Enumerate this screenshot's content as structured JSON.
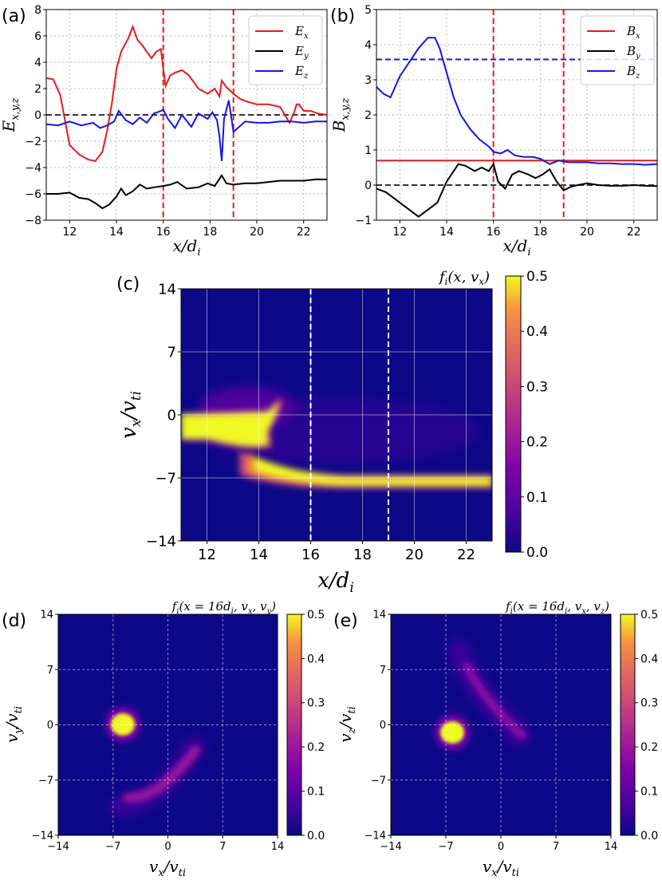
{
  "panels": {
    "a": "(a)",
    "b": "(b)",
    "c": "(c)",
    "d": "(d)",
    "e": "(e)"
  },
  "colorbars": {
    "c": {
      "title": "f_i(x, v_x)",
      "ticks": [
        "0.5",
        "0.4",
        "0.3",
        "0.2",
        "0.1",
        "0.0"
      ]
    },
    "d": {
      "ticks": [
        "0.5",
        "0.4",
        "0.3",
        "0.2",
        "0.1",
        "0.0"
      ]
    },
    "e": {
      "ticks": [
        "0.5",
        "0.4",
        "0.3",
        "0.2",
        "0.1",
        "0.0"
      ]
    }
  },
  "colors": {
    "red": "#e8191c",
    "black": "#000000",
    "blue": "#1515e6",
    "dashed_ref": "#444444",
    "plasma_low": "#0d0887",
    "plasma_high": "#f0f921"
  },
  "chart_data": [
    {
      "id": "a",
      "type": "line",
      "xlabel": "x/d_i",
      "ylabel": "E_{x,y,z}",
      "xlim": [
        11,
        23
      ],
      "ylim": [
        -8,
        8
      ],
      "xticks": [
        "12",
        "14",
        "16",
        "18",
        "20",
        "22"
      ],
      "yticks": [
        "8",
        "6",
        "4",
        "2",
        "0",
        "−2",
        "−4",
        "−6",
        "−8"
      ],
      "legend_placement": "top-right",
      "grid": true,
      "vlines": [
        16,
        19
      ],
      "hline": 0,
      "series": [
        {
          "name": "E_x",
          "color": "#e8191c",
          "x": [
            11,
            11.3,
            11.6,
            12,
            12.4,
            12.8,
            13.1,
            13.4,
            13.6,
            13.8,
            14,
            14.2,
            14.5,
            14.7,
            14.9,
            15.1,
            15.3,
            15.5,
            15.7,
            15.9,
            16,
            16.1,
            16.3,
            16.5,
            16.8,
            17.1,
            17.5,
            17.9,
            18.2,
            18.4,
            18.5,
            18.7,
            19,
            19.3,
            19.6,
            20,
            20.5,
            21,
            21.4,
            21.6,
            21.7,
            21.8,
            22,
            22.3,
            22.6,
            23
          ],
          "y": [
            2.8,
            2.7,
            1.5,
            -2.3,
            -3.0,
            -3.4,
            -3.5,
            -2.8,
            -1.2,
            0.8,
            3.5,
            4.8,
            5.8,
            6.7,
            5.7,
            5.3,
            4.8,
            4.3,
            4.8,
            5.0,
            3.5,
            2.2,
            3.0,
            3.2,
            3.4,
            3.0,
            2.0,
            1.6,
            2.0,
            1.4,
            2.6,
            2.1,
            1.6,
            1.2,
            1.0,
            0.8,
            0.8,
            0.6,
            -0.6,
            0.2,
            0.8,
            0.8,
            0.3,
            0.3,
            0.1,
            0.0
          ]
        },
        {
          "name": "E_y",
          "color": "#000000",
          "x": [
            11,
            11.5,
            12,
            12.4,
            12.8,
            13.1,
            13.4,
            13.7,
            14,
            14.2,
            14.4,
            14.7,
            15,
            15.3,
            15.6,
            16,
            16.3,
            16.6,
            17,
            17.5,
            17.9,
            18.2,
            18.5,
            18.7,
            19,
            19.5,
            20,
            20.5,
            21,
            21.5,
            22,
            22.5,
            23
          ],
          "y": [
            -6.0,
            -6.0,
            -5.9,
            -6.3,
            -6.4,
            -6.7,
            -7.1,
            -6.8,
            -6.2,
            -5.6,
            -6.1,
            -5.8,
            -5.3,
            -5.6,
            -5.5,
            -5.4,
            -5.3,
            -5.1,
            -5.6,
            -5.5,
            -5.2,
            -5.4,
            -4.6,
            -5.2,
            -5.3,
            -5.2,
            -5.2,
            -5.1,
            -5.0,
            -5.0,
            -5.0,
            -4.9,
            -4.9
          ]
        },
        {
          "name": "E_z",
          "color": "#1515e6",
          "x": [
            11,
            11.5,
            12,
            12.5,
            13,
            13.3,
            13.6,
            13.9,
            14.1,
            14.4,
            14.7,
            15,
            15.3,
            15.6,
            15.9,
            16,
            16.2,
            16.5,
            16.8,
            17.2,
            17.5,
            17.9,
            18.1,
            18.3,
            18.4,
            18.5,
            18.6,
            18.8,
            19,
            19.5,
            20,
            20.5,
            21,
            21.5,
            22,
            22.5,
            23
          ],
          "y": [
            -0.7,
            -0.8,
            -0.5,
            -0.8,
            -0.6,
            -1.0,
            -0.8,
            -0.5,
            0.3,
            -0.4,
            -0.7,
            -0.2,
            -0.6,
            0.1,
            0.3,
            0.4,
            -0.3,
            -1.0,
            0.0,
            -0.9,
            0.1,
            -0.3,
            0.2,
            -0.4,
            -1.6,
            -3.5,
            -0.3,
            1.1,
            -1.3,
            -0.5,
            -0.6,
            -0.6,
            -0.5,
            -0.5,
            -0.6,
            -0.5,
            -0.5
          ]
        }
      ]
    },
    {
      "id": "b",
      "type": "line",
      "xlabel": "x/d_i",
      "ylabel": "B_{x,y,z}",
      "xlim": [
        11,
        23
      ],
      "ylim": [
        -1,
        5
      ],
      "xticks": [
        "12",
        "14",
        "16",
        "18",
        "20",
        "22"
      ],
      "yticks": [
        "5",
        "4",
        "3",
        "2",
        "1",
        "0",
        "−1"
      ],
      "legend_placement": "top-right",
      "grid": true,
      "vlines": [
        16,
        19
      ],
      "hline": 0,
      "hline_blue": 3.58,
      "series": [
        {
          "name": "B_x",
          "color": "#e8191c",
          "x": [
            11,
            23
          ],
          "y": [
            0.7,
            0.7
          ]
        },
        {
          "name": "B_y",
          "color": "#000000",
          "x": [
            11,
            11.4,
            11.8,
            12.2,
            12.6,
            12.8,
            13.2,
            13.6,
            14,
            14.3,
            14.5,
            14.8,
            15.2,
            15.5,
            15.8,
            16,
            16.2,
            16.5,
            16.8,
            17.1,
            17.5,
            17.8,
            18.1,
            18.4,
            18.7,
            19,
            19.3,
            19.6,
            20,
            20.5,
            21,
            21.5,
            22,
            22.5,
            23
          ],
          "y": [
            -0.1,
            -0.2,
            -0.4,
            -0.6,
            -0.8,
            -0.9,
            -0.7,
            -0.5,
            0.1,
            0.4,
            0.6,
            0.55,
            0.4,
            0.5,
            0.4,
            0.6,
            0.1,
            -0.1,
            0.3,
            0.4,
            0.3,
            0.2,
            0.3,
            0.45,
            0.1,
            -0.15,
            -0.05,
            0.0,
            0.05,
            0.0,
            -0.02,
            -0.02,
            0.0,
            -0.02,
            -0.03
          ]
        },
        {
          "name": "B_z",
          "color": "#1515e6",
          "x": [
            11,
            11.3,
            11.6,
            12,
            12.4,
            12.8,
            13.2,
            13.5,
            13.7,
            14,
            14.3,
            14.6,
            15,
            15.4,
            15.8,
            16,
            16.3,
            16.6,
            16.9,
            17.3,
            17.7,
            18,
            18.4,
            18.8,
            19.2,
            19.6,
            20,
            20.5,
            21,
            21.5,
            22,
            22.5,
            23
          ],
          "y": [
            2.8,
            2.6,
            2.5,
            3.1,
            3.5,
            3.9,
            4.2,
            4.2,
            3.9,
            3.2,
            2.5,
            2.0,
            1.6,
            1.3,
            1.1,
            0.95,
            0.9,
            1.0,
            0.85,
            0.8,
            0.8,
            0.75,
            0.6,
            0.7,
            0.65,
            0.65,
            0.65,
            0.62,
            0.62,
            0.6,
            0.6,
            0.58,
            0.6
          ]
        }
      ]
    },
    {
      "id": "c",
      "type": "heatmap",
      "xlabel": "x/d_i",
      "ylabel": "v_x/v_{ti}",
      "xlim": [
        11,
        23
      ],
      "ylim": [
        -14,
        14
      ],
      "xticks": [
        "12",
        "14",
        "16",
        "18",
        "20",
        "22"
      ],
      "yticks": [
        "14",
        "7",
        "0",
        "−7",
        "−14"
      ],
      "vlines": [
        16,
        19
      ],
      "colorbar_range": [
        0.0,
        0.5
      ],
      "features": [
        {
          "kind": "core",
          "x_range": [
            11,
            14.3
          ],
          "v_range": [
            -5,
            0.5
          ],
          "value": 0.5
        },
        {
          "kind": "beam",
          "x_range": [
            13.5,
            23
          ],
          "v_center": -7.2,
          "value": 0.5
        }
      ]
    },
    {
      "id": "d",
      "type": "heatmap",
      "title": "f_i(x = 16d_i, v_x, v_y)",
      "xlabel": "v_x/v_{ti}",
      "ylabel": "v_y/v_{ti}",
      "xlim": [
        -14,
        14
      ],
      "ylim": [
        -14,
        14
      ],
      "xticks": [
        "−14",
        "−7",
        "0",
        "7",
        "14"
      ],
      "yticks": [
        "14",
        "7",
        "0",
        "−7",
        "−14"
      ],
      "colorbar_range": [
        0.0,
        0.5
      ],
      "features": [
        {
          "kind": "blob",
          "vx": -5.5,
          "vy": 0.0,
          "value": 0.5
        },
        {
          "kind": "arc",
          "from": [
            -4,
            -11
          ],
          "to": [
            2,
            -7
          ],
          "value": 0.15
        }
      ]
    },
    {
      "id": "e",
      "type": "heatmap",
      "title": "f_i(x = 16d_i, v_x, v_z)",
      "xlabel": "v_x/v_{ti}",
      "ylabel": "v_z/v_{ti}",
      "xlim": [
        -14,
        14
      ],
      "ylim": [
        -14,
        14
      ],
      "xticks": [
        "−14",
        "−7",
        "0",
        "7",
        "14"
      ],
      "yticks": [
        "14",
        "7",
        "0",
        "−7",
        "−14"
      ],
      "colorbar_range": [
        0.0,
        0.5
      ],
      "features": [
        {
          "kind": "blob",
          "vx": -6.5,
          "vz": -1.0,
          "value": 0.5
        },
        {
          "kind": "arc",
          "from": [
            -5,
            10
          ],
          "to": [
            3,
            -1
          ],
          "value": 0.15
        }
      ]
    }
  ]
}
